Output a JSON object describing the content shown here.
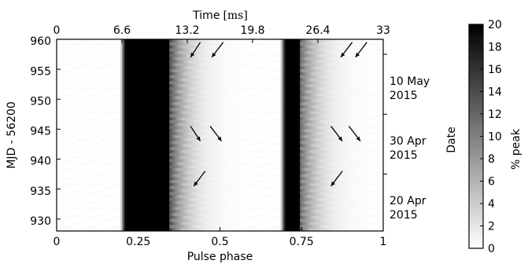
{
  "chart_data": [
    {
      "type": "heatmap",
      "title": "",
      "xlabel": "Pulse phase",
      "ylabel": "MJD - 56200",
      "xlim": [
        0,
        1
      ],
      "ylim": [
        928,
        960
      ],
      "x_ticks": [
        0,
        0.25,
        0.5,
        0.75,
        1
      ],
      "x_tick_labels": [
        "0",
        "0.25",
        "0.5",
        "0.75",
        "1"
      ],
      "y_ticks": [
        930,
        935,
        940,
        945,
        950,
        955,
        960
      ],
      "y_tick_labels": [
        "930",
        "935",
        "940",
        "945",
        "950",
        "955",
        "960"
      ],
      "top_axis": {
        "label_text": "Time",
        "label_unit": "[ms]",
        "ticks": [
          0,
          6.6,
          13.2,
          19.8,
          26.4,
          33
        ],
        "tick_labels": [
          "0",
          "6.6",
          "13.2",
          "19.8",
          "26.4",
          "33"
        ]
      },
      "right_axis": {
        "label": "Date",
        "ticks": [
          {
            "mjd_offset": 957.5,
            "line1": "10 May",
            "line2": "2015"
          },
          {
            "mjd_offset": 947.5,
            "line1": "30 Apr",
            "line2": "2015"
          },
          {
            "mjd_offset": 937.5,
            "line1": "20 Apr",
            "line2": "2015"
          }
        ]
      },
      "profile": {
        "components": [
          {
            "start": 0.21,
            "end": 0.345,
            "level": 20
          },
          {
            "start": 0.7,
            "end": 0.745,
            "level": 20
          }
        ],
        "tails": [
          {
            "start": 0.345,
            "end": 0.55,
            "peak": 13,
            "decay": 0.05
          },
          {
            "start": 0.745,
            "end": 0.95,
            "peak": 11,
            "decay": 0.05
          }
        ],
        "leading_edges": [
          {
            "start": 0.195,
            "end": 0.21
          },
          {
            "start": 0.685,
            "end": 0.7
          }
        ]
      },
      "arrows": [
        {
          "from": [
            0.44,
            959.5
          ],
          "to": [
            0.41,
            957.0
          ]
        },
        {
          "from": [
            0.51,
            959.5
          ],
          "to": [
            0.475,
            957.0
          ]
        },
        {
          "from": [
            0.905,
            959.5
          ],
          "to": [
            0.87,
            957.0
          ]
        },
        {
          "from": [
            0.95,
            959.5
          ],
          "to": [
            0.915,
            957.0
          ]
        },
        {
          "from": [
            0.41,
            945.5
          ],
          "to": [
            0.44,
            943.0
          ]
        },
        {
          "from": [
            0.47,
            945.5
          ],
          "to": [
            0.505,
            943.0
          ]
        },
        {
          "from": [
            0.84,
            945.5
          ],
          "to": [
            0.875,
            943.0
          ]
        },
        {
          "from": [
            0.895,
            945.5
          ],
          "to": [
            0.93,
            943.0
          ]
        },
        {
          "from": [
            0.455,
            938.0
          ],
          "to": [
            0.42,
            935.5
          ]
        },
        {
          "from": [
            0.875,
            938.0
          ],
          "to": [
            0.84,
            935.5
          ]
        }
      ],
      "colorbar": {
        "label": "% peak",
        "range": [
          0,
          20
        ],
        "ticks": [
          0,
          2,
          4,
          6,
          8,
          10,
          12,
          14,
          16,
          18,
          20
        ],
        "tick_labels": [
          "0",
          "2",
          "4",
          "6",
          "8",
          "10",
          "12",
          "14",
          "16",
          "18",
          "20"
        ],
        "colormap": "white-to-black"
      }
    }
  ]
}
